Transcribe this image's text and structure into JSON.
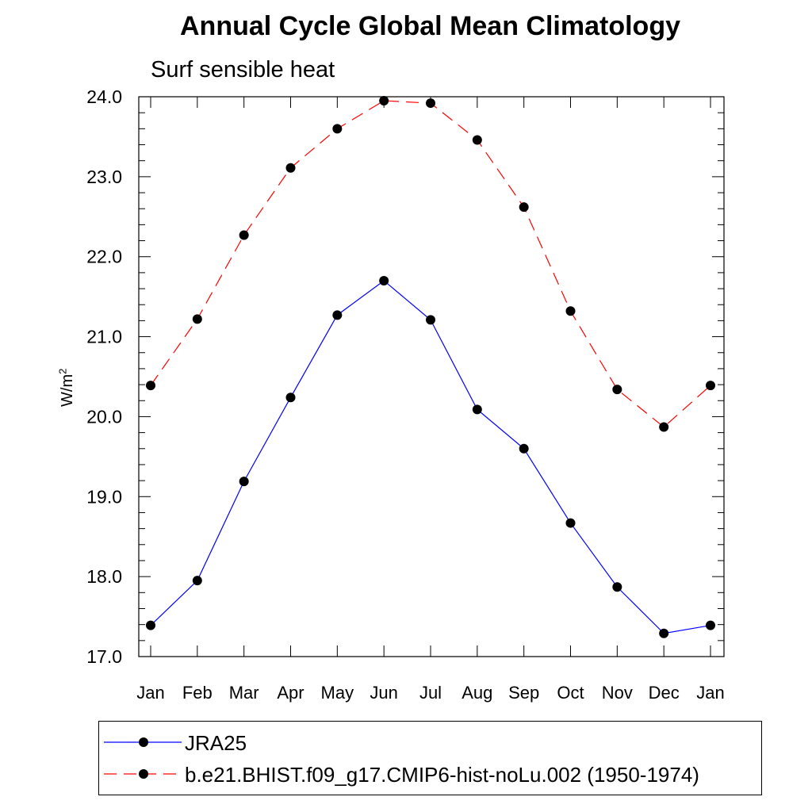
{
  "chart_data": {
    "type": "line",
    "title": "Annual Cycle Global Mean Climatology",
    "subtitle": "Surf sensible heat",
    "ylabel": "W/m",
    "ylabel_superscript": "2",
    "xlabel": "",
    "categories": [
      "Jan",
      "Feb",
      "Mar",
      "Apr",
      "May",
      "Jun",
      "Jul",
      "Aug",
      "Sep",
      "Oct",
      "Nov",
      "Dec",
      "Jan"
    ],
    "ylim": [
      17.0,
      24.0
    ],
    "yticks": [
      17.0,
      18.0,
      19.0,
      20.0,
      21.0,
      22.0,
      23.0,
      24.0
    ],
    "ytick_labels": [
      "17.0",
      "18.0",
      "19.0",
      "20.0",
      "21.0",
      "22.0",
      "23.0",
      "24.0"
    ],
    "grid": false,
    "legend_position": "bottom",
    "series": [
      {
        "name": "JRA25",
        "color": "#0000ff",
        "dash": "solid",
        "values": [
          17.39,
          17.95,
          19.19,
          20.24,
          21.27,
          21.7,
          21.21,
          20.09,
          19.6,
          18.67,
          17.87,
          17.29,
          17.39
        ]
      },
      {
        "name": "b.e21.BHIST.f09_g17.CMIP6-hist-noLu.002 (1950-1974)",
        "color": "#ff0000",
        "dash": "dashed",
        "values": [
          20.39,
          21.22,
          22.27,
          23.11,
          23.6,
          23.95,
          23.92,
          23.46,
          22.62,
          21.32,
          20.34,
          19.87,
          20.39
        ]
      }
    ]
  },
  "marker_color": "#000000"
}
